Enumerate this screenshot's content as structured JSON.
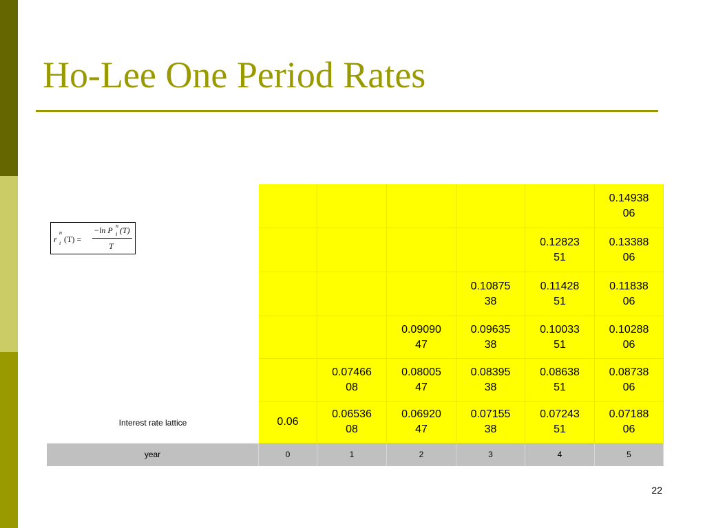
{
  "slide": {
    "title": "Ho-Lee One Period Rates",
    "page_number": "22"
  },
  "formula": {
    "r": "r",
    "sup_left": "n",
    "sub_left": "i",
    "arg": "(T) =",
    "numerator": "−ln P",
    "sup_right": "n",
    "sub_right": "i",
    "arg_right": "(T)",
    "denominator": "T"
  },
  "lattice": {
    "label": "Interest rate lattice",
    "rows": [
      [
        "",
        "",
        "",
        "",
        "",
        "0.14938\n06"
      ],
      [
        "",
        "",
        "",
        "",
        "0.12823\n51",
        "0.13388\n06"
      ],
      [
        "",
        "",
        "",
        "0.10875\n38",
        "0.11428\n51",
        "0.11838\n06"
      ],
      [
        "",
        "",
        "0.09090\n47",
        "0.09635\n38",
        "0.10033\n51",
        "0.10288\n06"
      ],
      [
        "",
        "0.07466\n08",
        "0.08005\n47",
        "0.08395\n38",
        "0.08638\n51",
        "0.08738\n06"
      ],
      [
        "0.06",
        "0.06536\n08",
        "0.06920\n47",
        "0.07155\n38",
        "0.07243\n51",
        "0.07188\n06"
      ]
    ],
    "year_label": "year",
    "years": [
      "0",
      "1",
      "2",
      "3",
      "4",
      "5"
    ]
  },
  "colors": {
    "accent": "#999900",
    "cell_fill": "#ffff00",
    "header_fill": "#c0c0c0"
  }
}
